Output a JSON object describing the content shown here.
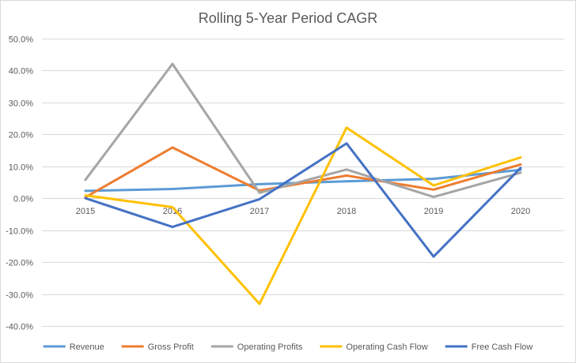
{
  "chart_data": {
    "type": "line",
    "title": "Rolling 5-Year Period CAGR",
    "xlabel": "",
    "ylabel": "",
    "categories": [
      "2015",
      "2016",
      "2017",
      "2018",
      "2019",
      "2020"
    ],
    "ylim": [
      -0.4,
      0.5
    ],
    "yticks": [
      0.5,
      0.4,
      0.3,
      0.2,
      0.1,
      0.0,
      -0.1,
      -0.2,
      -0.3,
      -0.4
    ],
    "ytick_labels": [
      "50.0%",
      "40.0%",
      "30.0%",
      "20.0%",
      "10.0%",
      "0.0%",
      "-10.0%",
      "-20.0%",
      "-30.0%",
      "-40.0%"
    ],
    "grid": true,
    "legend_position": "bottom",
    "series": [
      {
        "name": "Revenue",
        "color": "#5B9BD5",
        "values": [
          0.023,
          0.029,
          0.044,
          0.053,
          0.061,
          0.089
        ]
      },
      {
        "name": "Gross Profit",
        "color": "#ED7D31",
        "values": [
          0.003,
          0.159,
          0.024,
          0.071,
          0.027,
          0.106
        ]
      },
      {
        "name": "Operating Profits",
        "color": "#A5A5A5",
        "values": [
          0.058,
          0.421,
          0.017,
          0.09,
          0.004,
          0.08
        ]
      },
      {
        "name": "Operating Cash Flow",
        "color": "#FFC000",
        "values": [
          0.009,
          -0.028,
          -0.331,
          0.221,
          0.04,
          0.128
        ]
      },
      {
        "name": "Free Cash Flow",
        "color": "#4472C4",
        "values": [
          0.0,
          -0.09,
          -0.003,
          0.172,
          -0.183,
          0.095
        ]
      }
    ]
  }
}
